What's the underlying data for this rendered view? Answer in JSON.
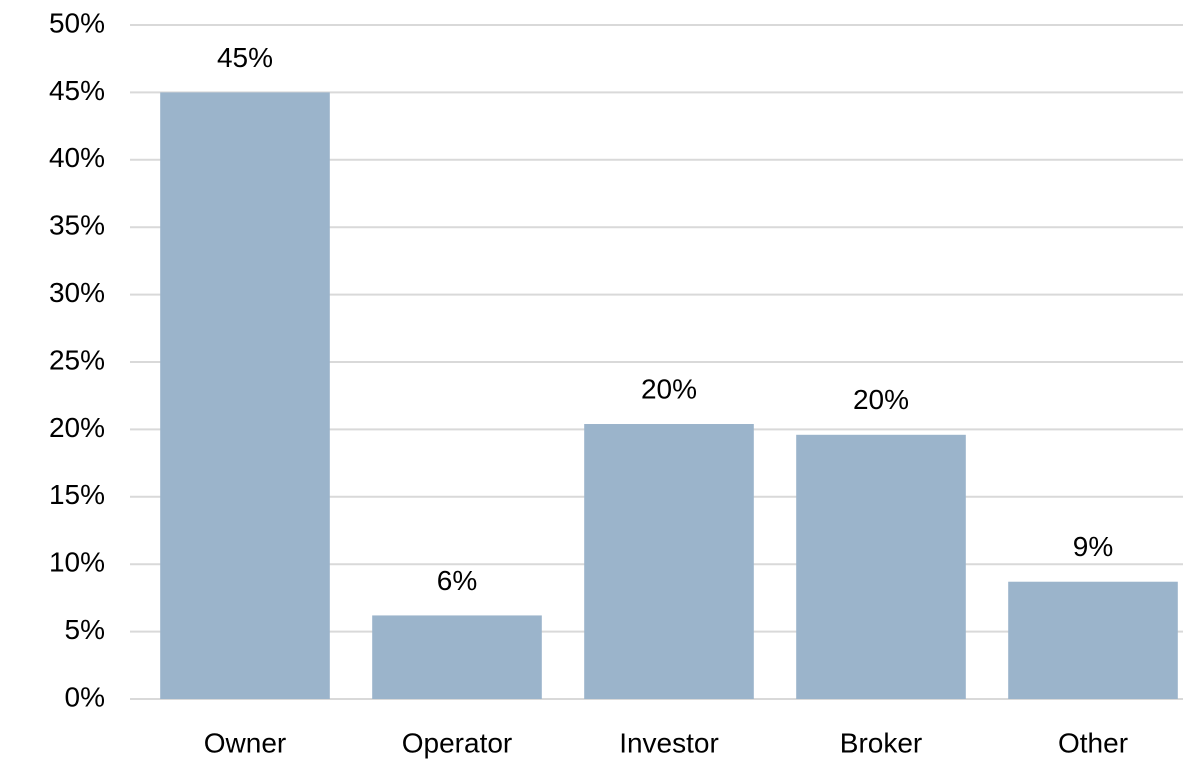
{
  "chart_data": {
    "type": "bar",
    "categories": [
      "Owner",
      "Operator",
      "Investor",
      "Broker",
      "Other"
    ],
    "values": [
      45,
      6.2,
      20.4,
      19.6,
      8.7
    ],
    "value_labels": [
      "45%",
      "6%",
      "20%",
      "20%",
      "9%"
    ],
    "color": "#9bb4cb",
    "ylim": [
      0,
      50
    ],
    "yticks": [
      {
        "value": 0,
        "label": "0%"
      },
      {
        "value": 5,
        "label": "5%"
      },
      {
        "value": 10,
        "label": "10%"
      },
      {
        "value": 15,
        "label": "15%"
      },
      {
        "value": 20,
        "label": "20%"
      },
      {
        "value": 25,
        "label": "25%"
      },
      {
        "value": 30,
        "label": "30%"
      },
      {
        "value": 35,
        "label": "35%"
      },
      {
        "value": 40,
        "label": "40%"
      },
      {
        "value": 45,
        "label": "45%"
      },
      {
        "value": 50,
        "label": "50%"
      }
    ],
    "grid": true
  }
}
